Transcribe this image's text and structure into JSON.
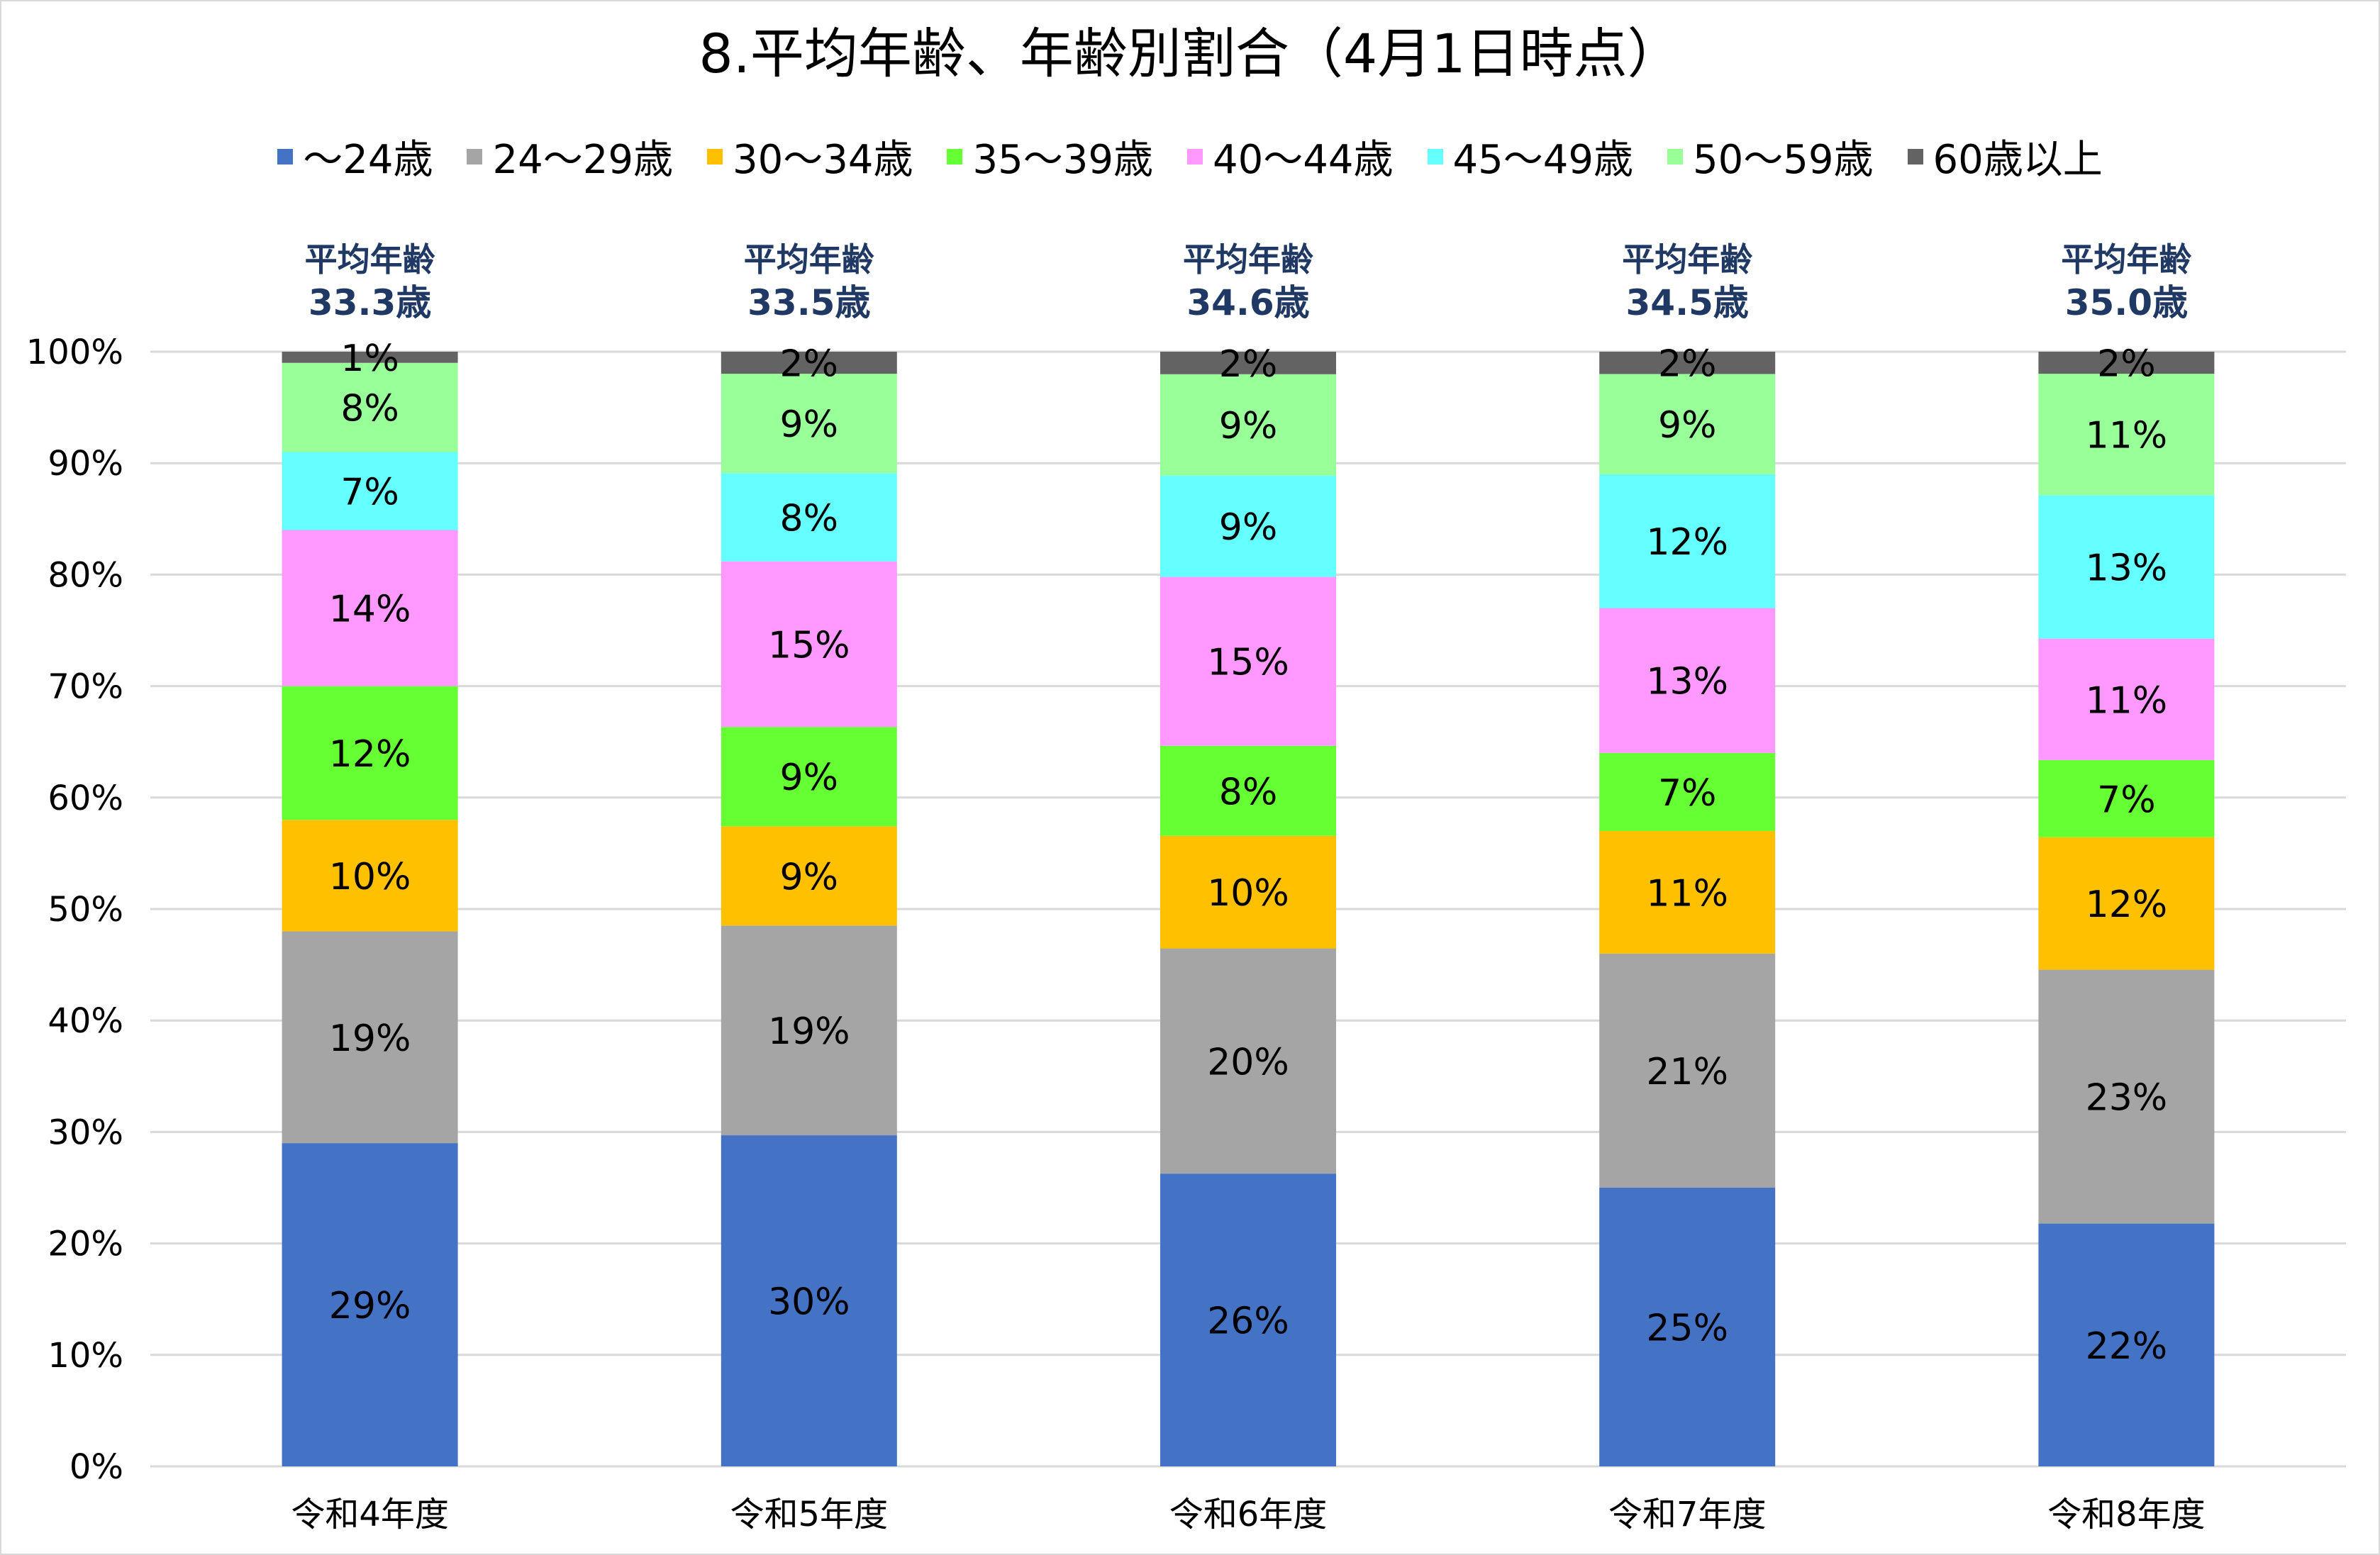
{
  "chart_data": {
    "type": "bar",
    "stacked": true,
    "title": "8.平均年齢、年齢別割合（4月1日時点）",
    "categories": [
      "令和4年度",
      "令和5年度",
      "令和6年度",
      "令和7年度",
      "令和8年度"
    ],
    "average_age_label": "平均年齢",
    "average_ages": [
      "33.3歳",
      "33.5歳",
      "34.6歳",
      "34.5歳",
      "35.0歳"
    ],
    "ylim": [
      0,
      100
    ],
    "yticks": [
      "0%",
      "10%",
      "20%",
      "30%",
      "40%",
      "50%",
      "60%",
      "70%",
      "80%",
      "90%",
      "100%"
    ],
    "grid": true,
    "legend_position": "top",
    "series": [
      {
        "name": "～24歳",
        "color": "#4472C4",
        "values": [
          29,
          30,
          26,
          25,
          22
        ],
        "labels": [
          "29%",
          "30%",
          "26%",
          "25%",
          "22%"
        ]
      },
      {
        "name": "24～29歳",
        "color": "#A5A5A5",
        "values": [
          19,
          19,
          20,
          21,
          23
        ],
        "labels": [
          "19%",
          "19%",
          "20%",
          "21%",
          "23%"
        ]
      },
      {
        "name": "30～34歳",
        "color": "#FFC000",
        "values": [
          10,
          9,
          10,
          11,
          12
        ],
        "labels": [
          "10%",
          "9%",
          "10%",
          "11%",
          "12%"
        ]
      },
      {
        "name": "35～39歳",
        "color": "#66FF33",
        "values": [
          12,
          9,
          8,
          7,
          7
        ],
        "labels": [
          "12%",
          "9%",
          "8%",
          "7%",
          "7%"
        ]
      },
      {
        "name": "40～44歳",
        "color": "#FF99FF",
        "values": [
          14,
          15,
          15,
          13,
          11
        ],
        "labels": [
          "14%",
          "15%",
          "15%",
          "13%",
          "11%"
        ]
      },
      {
        "name": "45～49歳",
        "color": "#66FFFF",
        "values": [
          7,
          8,
          9,
          12,
          13
        ],
        "labels": [
          "7%",
          "8%",
          "9%",
          "12%",
          "13%"
        ]
      },
      {
        "name": "50～59歳",
        "color": "#99FF99",
        "values": [
          8,
          9,
          9,
          9,
          11
        ],
        "labels": [
          "8%",
          "9%",
          "9%",
          "9%",
          "11%"
        ]
      },
      {
        "name": "60歳以上",
        "color": "#636363",
        "values": [
          1,
          2,
          2,
          2,
          2
        ],
        "labels": [
          "1%",
          "2%",
          "2%",
          "2%",
          "2%"
        ]
      }
    ],
    "colors": {
      "axis_text": "#000000",
      "avg_text": "#1F3864",
      "grid": "#D9D9D9"
    }
  }
}
